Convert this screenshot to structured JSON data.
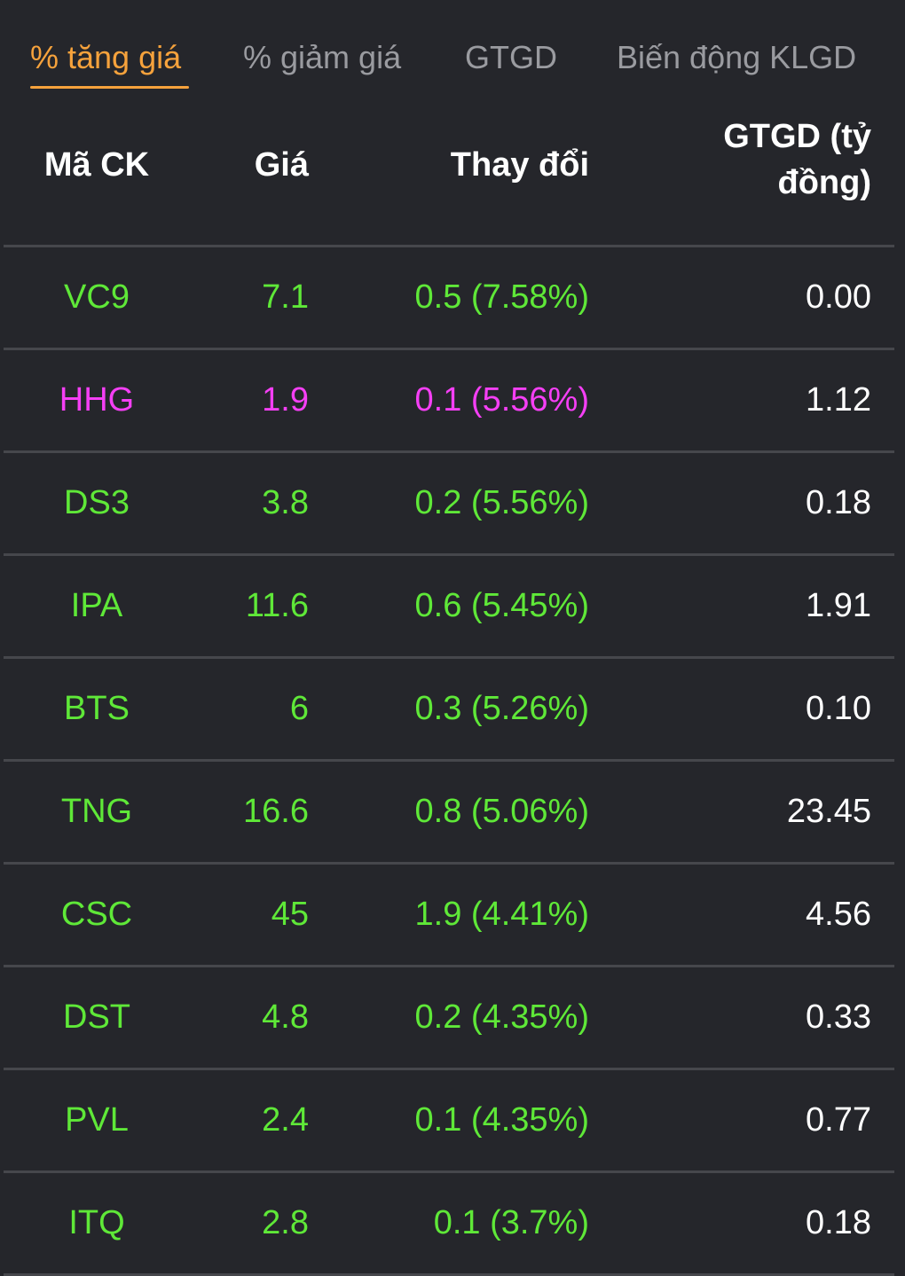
{
  "tabs": [
    {
      "label": "% tăng giá",
      "active": true
    },
    {
      "label": "% giảm giá",
      "active": false
    },
    {
      "label": "GTGD",
      "active": false
    },
    {
      "label": "Biến động KLGD",
      "active": false
    }
  ],
  "headers": {
    "symbol": "Mã CK",
    "price": "Giá",
    "change": "Thay đổi",
    "value_line1": "GTGD (tỷ",
    "value_line2": "đồng)"
  },
  "colors": {
    "up": "#5fe838",
    "ceiling": "#f53ff5",
    "active_tab": "#f6a23c"
  },
  "rows": [
    {
      "symbol": "VC9",
      "price": "7.1",
      "change": "0.5 (7.58%)",
      "value": "0.00",
      "status": "up"
    },
    {
      "symbol": "HHG",
      "price": "1.9",
      "change": "0.1 (5.56%)",
      "value": "1.12",
      "status": "ceiling"
    },
    {
      "symbol": "DS3",
      "price": "3.8",
      "change": "0.2 (5.56%)",
      "value": "0.18",
      "status": "up"
    },
    {
      "symbol": "IPA",
      "price": "11.6",
      "change": "0.6 (5.45%)",
      "value": "1.91",
      "status": "up"
    },
    {
      "symbol": "BTS",
      "price": "6",
      "change": "0.3 (5.26%)",
      "value": "0.10",
      "status": "up"
    },
    {
      "symbol": "TNG",
      "price": "16.6",
      "change": "0.8 (5.06%)",
      "value": "23.45",
      "status": "up"
    },
    {
      "symbol": "CSC",
      "price": "45",
      "change": "1.9 (4.41%)",
      "value": "4.56",
      "status": "up"
    },
    {
      "symbol": "DST",
      "price": "4.8",
      "change": "0.2 (4.35%)",
      "value": "0.33",
      "status": "up"
    },
    {
      "symbol": "PVL",
      "price": "2.4",
      "change": "0.1 (4.35%)",
      "value": "0.77",
      "status": "up"
    },
    {
      "symbol": "ITQ",
      "price": "2.8",
      "change": "0.1 (3.7%)",
      "value": "0.18",
      "status": "up"
    }
  ]
}
